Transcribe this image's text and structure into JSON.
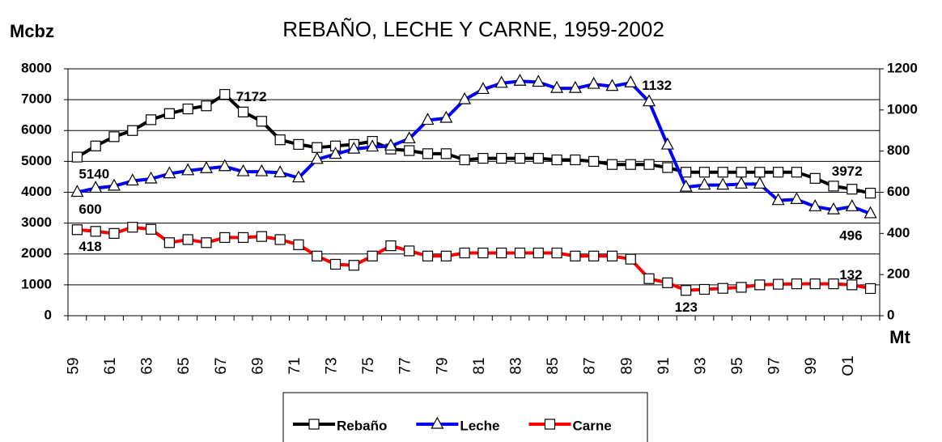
{
  "chart_data": {
    "type": "line",
    "title": "REBAÑO, LECHE Y CARNE, 1959-2002",
    "y_label": "Mcbz",
    "y2_label": "Mt",
    "categories": [
      "59",
      null,
      "61",
      null,
      "63",
      null,
      "65",
      null,
      "67",
      null,
      "69",
      null,
      "71",
      null,
      "73",
      null,
      "75",
      null,
      "77",
      null,
      "79",
      null,
      "81",
      null,
      "83",
      null,
      "85",
      null,
      "87",
      null,
      "89",
      null,
      "91",
      null,
      "93",
      null,
      "95",
      null,
      "97",
      null,
      "99",
      null,
      "O1",
      null
    ],
    "series": [
      {
        "name": "Rebaño",
        "color": "#000000",
        "marker": "square",
        "values": [
          5140,
          5500,
          5800,
          6000,
          6350,
          6550,
          6700,
          6800,
          7172,
          6600,
          6300,
          5700,
          5550,
          5450,
          5500,
          5550,
          5650,
          5400,
          5350,
          5250,
          5250,
          5050,
          5100,
          5100,
          5100,
          5100,
          5050,
          5050,
          5000,
          4900,
          4900,
          4900,
          4800,
          4650,
          4650,
          4650,
          4650,
          4650,
          4650,
          4650,
          4450,
          4200,
          4100,
          3972
        ],
        "value_labels": [
          "5140",
          null,
          null,
          null,
          null,
          null,
          null,
          null,
          "7172",
          null,
          null,
          null,
          null,
          null,
          null,
          null,
          null,
          null,
          null,
          null,
          null,
          null,
          null,
          null,
          null,
          null,
          null,
          null,
          null,
          null,
          null,
          null,
          null,
          null,
          null,
          null,
          null,
          null,
          null,
          null,
          null,
          null,
          null,
          "3972"
        ]
      },
      {
        "name": "Leche",
        "color": "#0000ff",
        "marker": "triangle",
        "axis": "y2",
        "values": [
          600,
          620,
          630,
          655,
          665,
          690,
          705,
          715,
          725,
          700,
          700,
          695,
          670,
          760,
          785,
          810,
          820,
          825,
          860,
          950,
          960,
          1050,
          1100,
          1130,
          1140,
          1135,
          1105,
          1105,
          1125,
          1115,
          1132,
          1040,
          830,
          625,
          635,
          635,
          640,
          640,
          560,
          565,
          530,
          515,
          530,
          496
        ],
        "value_labels": [
          "600",
          null,
          null,
          null,
          null,
          null,
          null,
          null,
          null,
          null,
          null,
          null,
          null,
          null,
          null,
          null,
          null,
          null,
          null,
          null,
          null,
          null,
          null,
          null,
          null,
          null,
          null,
          null,
          null,
          null,
          "1132",
          null,
          null,
          null,
          null,
          null,
          null,
          null,
          null,
          null,
          null,
          null,
          null,
          "496"
        ]
      },
      {
        "name": "Carne",
        "color": "#ff0000",
        "marker": "square",
        "axis": "y2",
        "values": [
          418,
          410,
          400,
          430,
          420,
          355,
          370,
          355,
          380,
          380,
          385,
          370,
          345,
          290,
          250,
          245,
          290,
          340,
          315,
          290,
          290,
          305,
          305,
          305,
          305,
          305,
          305,
          290,
          290,
          290,
          275,
          180,
          160,
          123,
          128,
          133,
          138,
          150,
          153,
          155,
          155,
          155,
          150,
          132
        ],
        "value_labels": [
          "418",
          null,
          null,
          null,
          null,
          null,
          null,
          null,
          null,
          null,
          null,
          null,
          null,
          null,
          null,
          null,
          null,
          null,
          null,
          null,
          null,
          null,
          null,
          null,
          null,
          null,
          null,
          null,
          null,
          null,
          null,
          null,
          null,
          "123",
          null,
          null,
          null,
          null,
          null,
          null,
          null,
          null,
          null,
          "132"
        ]
      }
    ],
    "ylim": [
      0,
      8000
    ],
    "yticks": [
      0,
      1000,
      2000,
      3000,
      4000,
      5000,
      6000,
      7000,
      8000
    ],
    "y2lim": [
      0,
      1200
    ],
    "y2ticks": [
      0,
      200,
      400,
      600,
      800,
      1000,
      1200
    ],
    "grid": true,
    "legend": "bottom"
  }
}
